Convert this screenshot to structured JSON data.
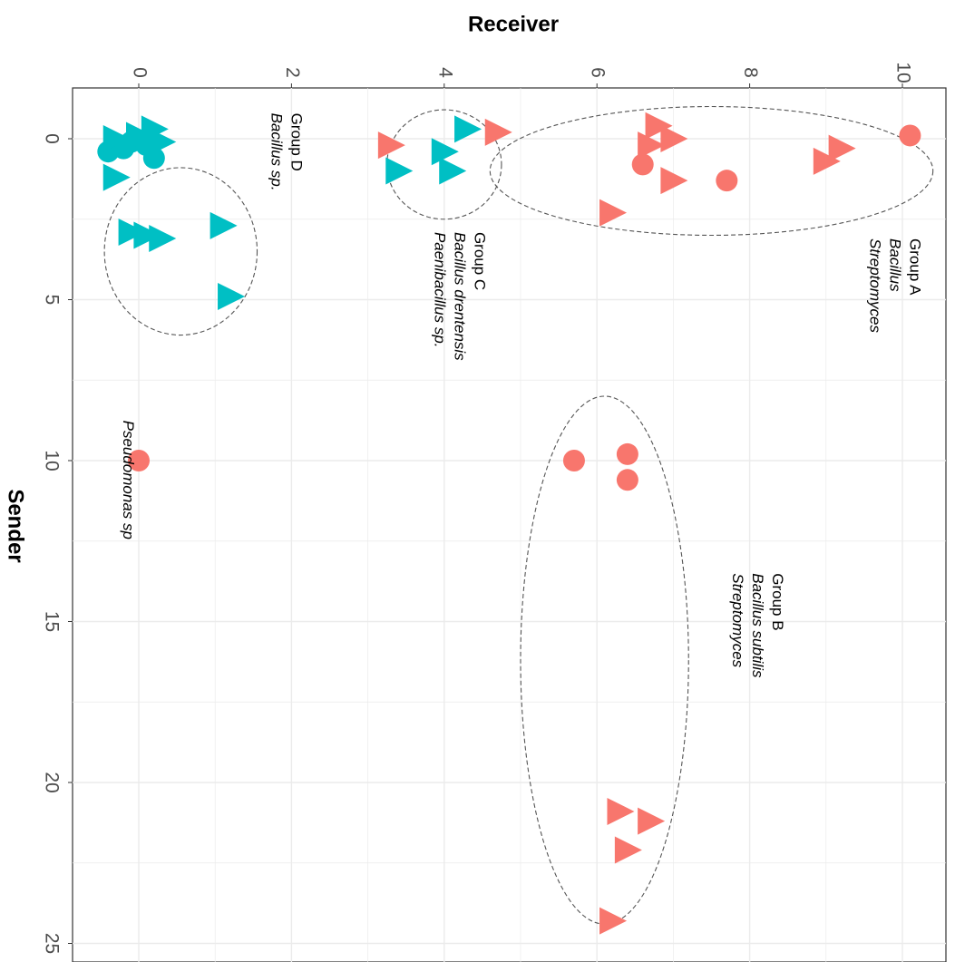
{
  "chart_data": {
    "type": "scatter",
    "title": "",
    "xlabel": "Receiver",
    "ylabel": "Sender",
    "xlim": [
      -0.5,
      10.5
    ],
    "ylim": [
      -1.6,
      25.2
    ],
    "x_ticks": [
      "0",
      "2",
      "4",
      "6",
      "8",
      "10"
    ],
    "y_ticks": [
      "0",
      "5",
      "10",
      "15",
      "20",
      "25"
    ],
    "grid": true,
    "legend": "none",
    "colors": {
      "salmon": "#F8766D",
      "teal": "#00BFC4"
    },
    "points": [
      {
        "x": -0.4,
        "y": 0.4,
        "shape": "circle",
        "color": "teal"
      },
      {
        "x": -0.2,
        "y": 0.3,
        "shape": "circle",
        "color": "teal"
      },
      {
        "x": -0.1,
        "y": 0.1,
        "shape": "circle",
        "color": "teal"
      },
      {
        "x": 0.1,
        "y": 0.2,
        "shape": "circle",
        "color": "teal"
      },
      {
        "x": 0.2,
        "y": 0.6,
        "shape": "circle",
        "color": "teal"
      },
      {
        "x": -0.3,
        "y": 0.0,
        "shape": "triangle",
        "color": "teal"
      },
      {
        "x": 0.0,
        "y": -0.1,
        "shape": "triangle",
        "color": "teal"
      },
      {
        "x": 0.2,
        "y": -0.3,
        "shape": "triangle",
        "color": "teal"
      },
      {
        "x": 0.3,
        "y": 0.1,
        "shape": "triangle",
        "color": "teal"
      },
      {
        "x": -0.3,
        "y": 1.2,
        "shape": "triangle",
        "color": "teal"
      },
      {
        "x": -0.1,
        "y": 2.9,
        "shape": "triangle",
        "color": "teal"
      },
      {
        "x": 0.1,
        "y": 3.0,
        "shape": "triangle",
        "color": "teal"
      },
      {
        "x": 0.3,
        "y": 3.1,
        "shape": "triangle",
        "color": "teal"
      },
      {
        "x": 1.1,
        "y": 2.7,
        "shape": "triangle",
        "color": "teal"
      },
      {
        "x": 1.2,
        "y": 4.9,
        "shape": "triangle",
        "color": "teal"
      },
      {
        "x": 3.3,
        "y": 0.2,
        "shape": "triangle",
        "color": "salmon"
      },
      {
        "x": 3.4,
        "y": 1.0,
        "shape": "triangle",
        "color": "teal"
      },
      {
        "x": 4.0,
        "y": 0.4,
        "shape": "triangle",
        "color": "teal"
      },
      {
        "x": 4.1,
        "y": 1.0,
        "shape": "triangle",
        "color": "teal"
      },
      {
        "x": 4.3,
        "y": -0.3,
        "shape": "triangle",
        "color": "teal"
      },
      {
        "x": 4.7,
        "y": -0.2,
        "shape": "triangle",
        "color": "salmon"
      },
      {
        "x": 6.2,
        "y": 2.3,
        "shape": "triangle",
        "color": "salmon"
      },
      {
        "x": 6.6,
        "y": 0.8,
        "shape": "circle",
        "color": "salmon"
      },
      {
        "x": 6.7,
        "y": 0.2,
        "shape": "triangle",
        "color": "salmon"
      },
      {
        "x": 6.8,
        "y": -0.4,
        "shape": "triangle",
        "color": "salmon"
      },
      {
        "x": 7.0,
        "y": 0.0,
        "shape": "triangle",
        "color": "salmon"
      },
      {
        "x": 7.0,
        "y": 1.3,
        "shape": "triangle",
        "color": "salmon"
      },
      {
        "x": 7.7,
        "y": 1.3,
        "shape": "circle",
        "color": "salmon"
      },
      {
        "x": 9.0,
        "y": 0.7,
        "shape": "triangle",
        "color": "salmon"
      },
      {
        "x": 9.2,
        "y": 0.3,
        "shape": "triangle",
        "color": "salmon"
      },
      {
        "x": 10.1,
        "y": -0.1,
        "shape": "circle",
        "color": "salmon"
      },
      {
        "x": 0.0,
        "y": 10.0,
        "shape": "circle",
        "color": "salmon"
      },
      {
        "x": 5.7,
        "y": 10.0,
        "shape": "circle",
        "color": "salmon"
      },
      {
        "x": 6.4,
        "y": 9.8,
        "shape": "circle",
        "color": "salmon"
      },
      {
        "x": 6.4,
        "y": 10.6,
        "shape": "circle",
        "color": "salmon"
      },
      {
        "x": 6.3,
        "y": 20.9,
        "shape": "triangle",
        "color": "salmon"
      },
      {
        "x": 6.7,
        "y": 21.2,
        "shape": "triangle",
        "color": "salmon"
      },
      {
        "x": 6.4,
        "y": 22.1,
        "shape": "triangle",
        "color": "salmon"
      },
      {
        "x": 6.2,
        "y": 24.3,
        "shape": "triangle",
        "color": "salmon"
      }
    ],
    "groups": [
      {
        "id": "group-a",
        "cx": 7.5,
        "cy": 1.0,
        "rx": 2.9,
        "ry": 2.0,
        "lines": [
          {
            "text": "Group A",
            "italic": false
          },
          {
            "text": "Bacillus",
            "italic": true
          },
          {
            "text": "Streptomyces",
            "italic": true
          }
        ],
        "label_x": 10.1,
        "label_y": 3.1
      },
      {
        "id": "group-b",
        "cx": 6.1,
        "cy": 16.2,
        "rx": 1.1,
        "ry": 8.2,
        "lines": [
          {
            "text": "Group B",
            "italic": false
          },
          {
            "text": "Bacillus subtilis",
            "italic": true
          },
          {
            "text": "Streptomyces",
            "italic": true
          }
        ],
        "label_x": 8.3,
        "label_y": 13.5
      },
      {
        "id": "group-c",
        "cx": 4.0,
        "cy": 0.8,
        "rx": 0.75,
        "ry": 1.7,
        "lines": [
          {
            "text": "Group C",
            "italic": false
          },
          {
            "text": "Bacillus drentensis",
            "italic": true
          },
          {
            "text": "Paenibacillus sp.",
            "italic": true
          }
        ],
        "label_x": 4.4,
        "label_y": 2.9
      },
      {
        "id": "group-d",
        "cx": 0.55,
        "cy": 3.5,
        "rx": 1.0,
        "ry": 2.6,
        "lines": [
          {
            "text": "Group D",
            "italic": false
          },
          {
            "text": "Bacillus sp.",
            "italic": true
          }
        ],
        "label_x": 2.0,
        "label_y": -0.8
      }
    ],
    "annotations": [
      {
        "text": "Pseudomonas sp",
        "italic": true,
        "x": -0.2,
        "y": 10.6
      }
    ]
  }
}
